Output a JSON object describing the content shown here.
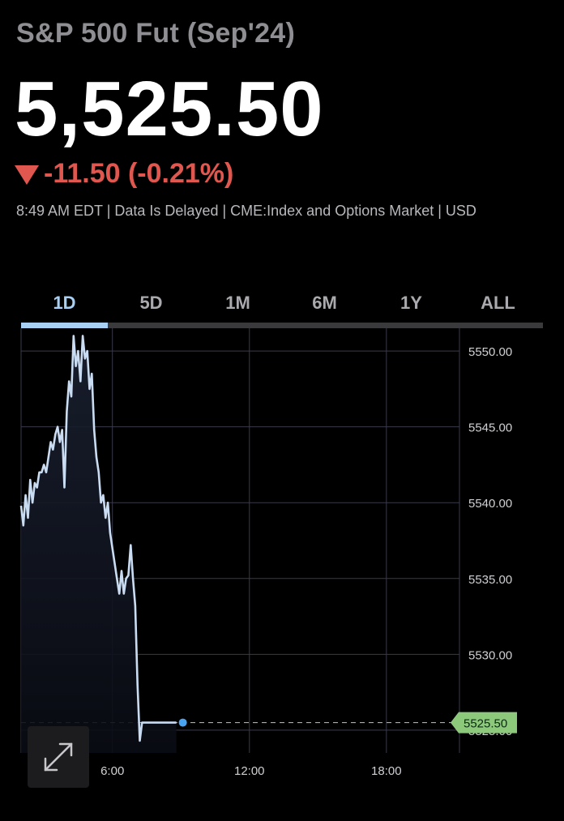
{
  "header": {
    "title": "S&P 500 Fut (Sep'24)",
    "price": "5,525.50",
    "change": "-11.50 (-0.21%)",
    "meta": "8:49 AM EDT | Data Is Delayed | CME:Index and Options Market | USD"
  },
  "tabs": [
    {
      "label": "1D",
      "active": true
    },
    {
      "label": "5D"
    },
    {
      "label": "1M"
    },
    {
      "label": "6M"
    },
    {
      "label": "1Y"
    },
    {
      "label": "ALL"
    }
  ],
  "colors": {
    "line": "#c9dcf2",
    "accent": "#a8d0f5",
    "down": "#e0574f",
    "last_price_badge": "#8cc97b",
    "grid": "#3a3a4a"
  },
  "chart_data": {
    "type": "line",
    "x_unit": "hours",
    "xlim": [
      2.0,
      21.2
    ],
    "ylim": [
      5523.5,
      5551.5
    ],
    "x_ticks": [
      {
        "value": 6,
        "label": "6:00"
      },
      {
        "value": 12,
        "label": "12:00"
      },
      {
        "value": 18,
        "label": "18:00"
      }
    ],
    "y_ticks": [
      {
        "value": 5550,
        "label": "5550.00"
      },
      {
        "value": 5545,
        "label": "5545.00"
      },
      {
        "value": 5540,
        "label": "5540.00"
      },
      {
        "value": 5535,
        "label": "5535.00"
      },
      {
        "value": 5530,
        "label": "5530.00"
      },
      {
        "value": 5525,
        "label": "5525.00"
      }
    ],
    "reference_line": 5525.5,
    "last_price": {
      "value": 5525.5,
      "label": "5525.50"
    },
    "series": [
      {
        "x": [
          2.0,
          2.1,
          2.2,
          2.3,
          2.4,
          2.5,
          2.6,
          2.7,
          2.8,
          2.9,
          3.0,
          3.1,
          3.2,
          3.3,
          3.4,
          3.5,
          3.6,
          3.7,
          3.8,
          3.9,
          4.0,
          4.1,
          4.2,
          4.3,
          4.4,
          4.5,
          4.6,
          4.7,
          4.8,
          4.9,
          5.0,
          5.1,
          5.2,
          5.3,
          5.4,
          5.5,
          5.6,
          5.7,
          5.8,
          5.9,
          6.0,
          6.1,
          6.2,
          6.3,
          6.4,
          6.5,
          6.6,
          6.7,
          6.8,
          6.9,
          7.0,
          7.1,
          7.2,
          7.3,
          7.4,
          7.5,
          7.6,
          7.7,
          7.8,
          7.9,
          8.0,
          8.1,
          8.2,
          8.3,
          8.4,
          8.5,
          8.6,
          8.7,
          8.8
        ],
        "y": [
          5539.8,
          5538.5,
          5540.5,
          5539,
          5541.5,
          5540,
          5541.3,
          5541,
          5542,
          5542,
          5542.5,
          5542,
          5543,
          5544,
          5543.5,
          5544.5,
          5545,
          5544,
          5544.8,
          5541,
          5546,
          5548,
          5547,
          5551,
          5549,
          5550,
          5548,
          5551,
          5549.5,
          5550,
          5547.5,
          5548.5,
          5544.8,
          5543,
          5542,
          5540,
          5540.5,
          5539,
          5540,
          5538,
          5537,
          5536,
          5535,
          5534,
          5535.5,
          5534,
          5535,
          5535.2,
          5537.2,
          5535,
          5533.2,
          5528,
          5524.3,
          5525.5,
          5525.5,
          5525.5,
          5525.5,
          5525.5,
          5525.5,
          5525.5,
          5525.5,
          5525.5,
          5525.5,
          5525.5,
          5525.5,
          5525.5,
          5525.5,
          5525.5,
          5525.5
        ]
      }
    ]
  }
}
